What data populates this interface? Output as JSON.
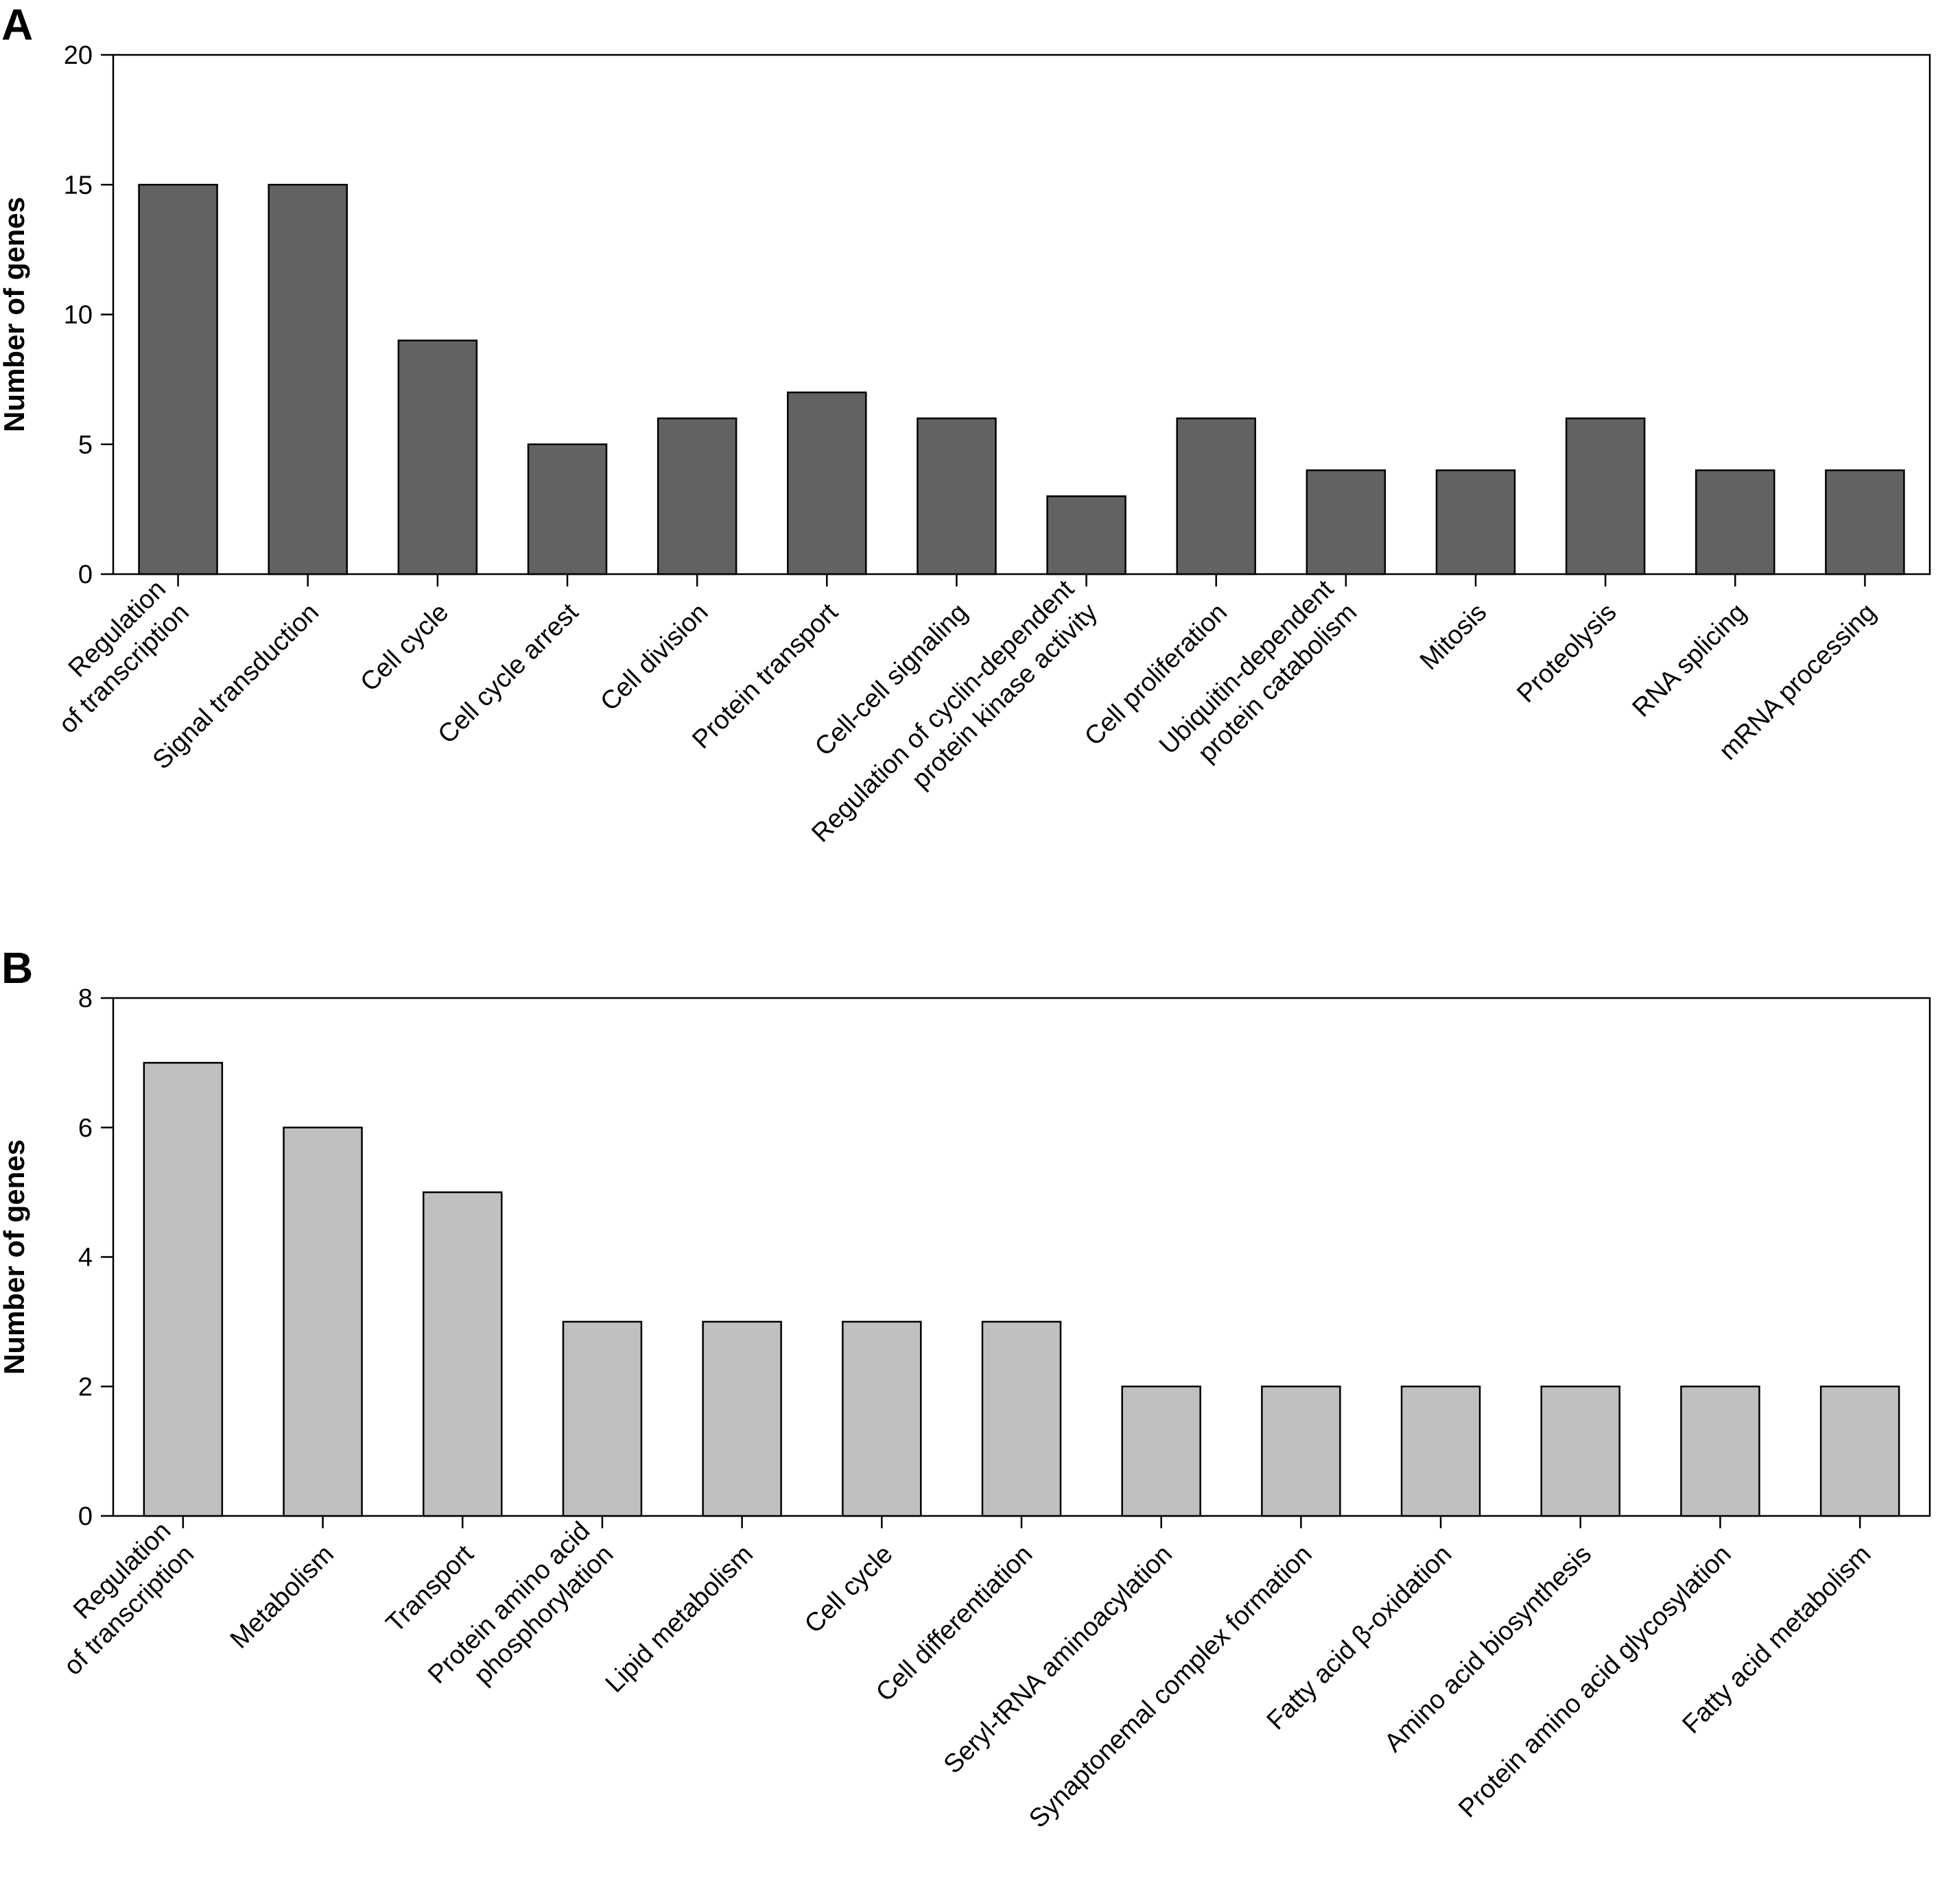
{
  "chart_data": [
    {
      "type": "bar",
      "panel_label": "A",
      "ylabel": "Number of genes",
      "xlabel": "",
      "ylim": [
        0,
        20
      ],
      "yticks": [
        "0",
        "5",
        "10",
        "15",
        "20"
      ],
      "bar_color": "#626262",
      "grid": false,
      "categories": [
        [
          "Regulation",
          "of transcription"
        ],
        [
          "Signal transduction"
        ],
        [
          "Cell cycle"
        ],
        [
          "Cell cycle arrest"
        ],
        [
          "Cell division"
        ],
        [
          "Protein transport"
        ],
        [
          "Cell-cell signaling"
        ],
        [
          "Regulation of cyclin-dependent",
          "protein kinase activity"
        ],
        [
          "Cell proliferation"
        ],
        [
          "Ubiquitin-dependent",
          "protein catabolism"
        ],
        [
          "Mitosis"
        ],
        [
          "Proteolysis"
        ],
        [
          "RNA splicing"
        ],
        [
          "mRNA processing"
        ]
      ],
      "values": [
        15,
        15,
        9,
        5,
        6,
        7,
        6,
        3,
        6,
        4,
        4,
        6,
        4,
        4
      ]
    },
    {
      "type": "bar",
      "panel_label": "B",
      "ylabel": "Number of genes",
      "xlabel": "",
      "ylim": [
        0,
        8
      ],
      "yticks": [
        "0",
        "2",
        "4",
        "6",
        "8"
      ],
      "bar_color": "#c0c0c0",
      "grid": false,
      "categories": [
        [
          "Regulation",
          "of transcription"
        ],
        [
          "Metabolism"
        ],
        [
          "Transport"
        ],
        [
          "Protein amino acid",
          "phosphorylation"
        ],
        [
          "Lipid metabolism"
        ],
        [
          "Cell cycle"
        ],
        [
          "Cell differentiation"
        ],
        [
          "Seryl-tRNA aminoacylation"
        ],
        [
          "Synaptonemal complex formation"
        ],
        [
          "Fatty acid β-oxidation"
        ],
        [
          "Amino acid biosynthesis"
        ],
        [
          "Protein amino acid glycosylation"
        ],
        [
          "Fatty acid metabolism"
        ]
      ],
      "values": [
        7,
        6,
        5,
        3,
        3,
        3,
        3,
        2,
        2,
        2,
        2,
        2,
        2
      ]
    }
  ]
}
